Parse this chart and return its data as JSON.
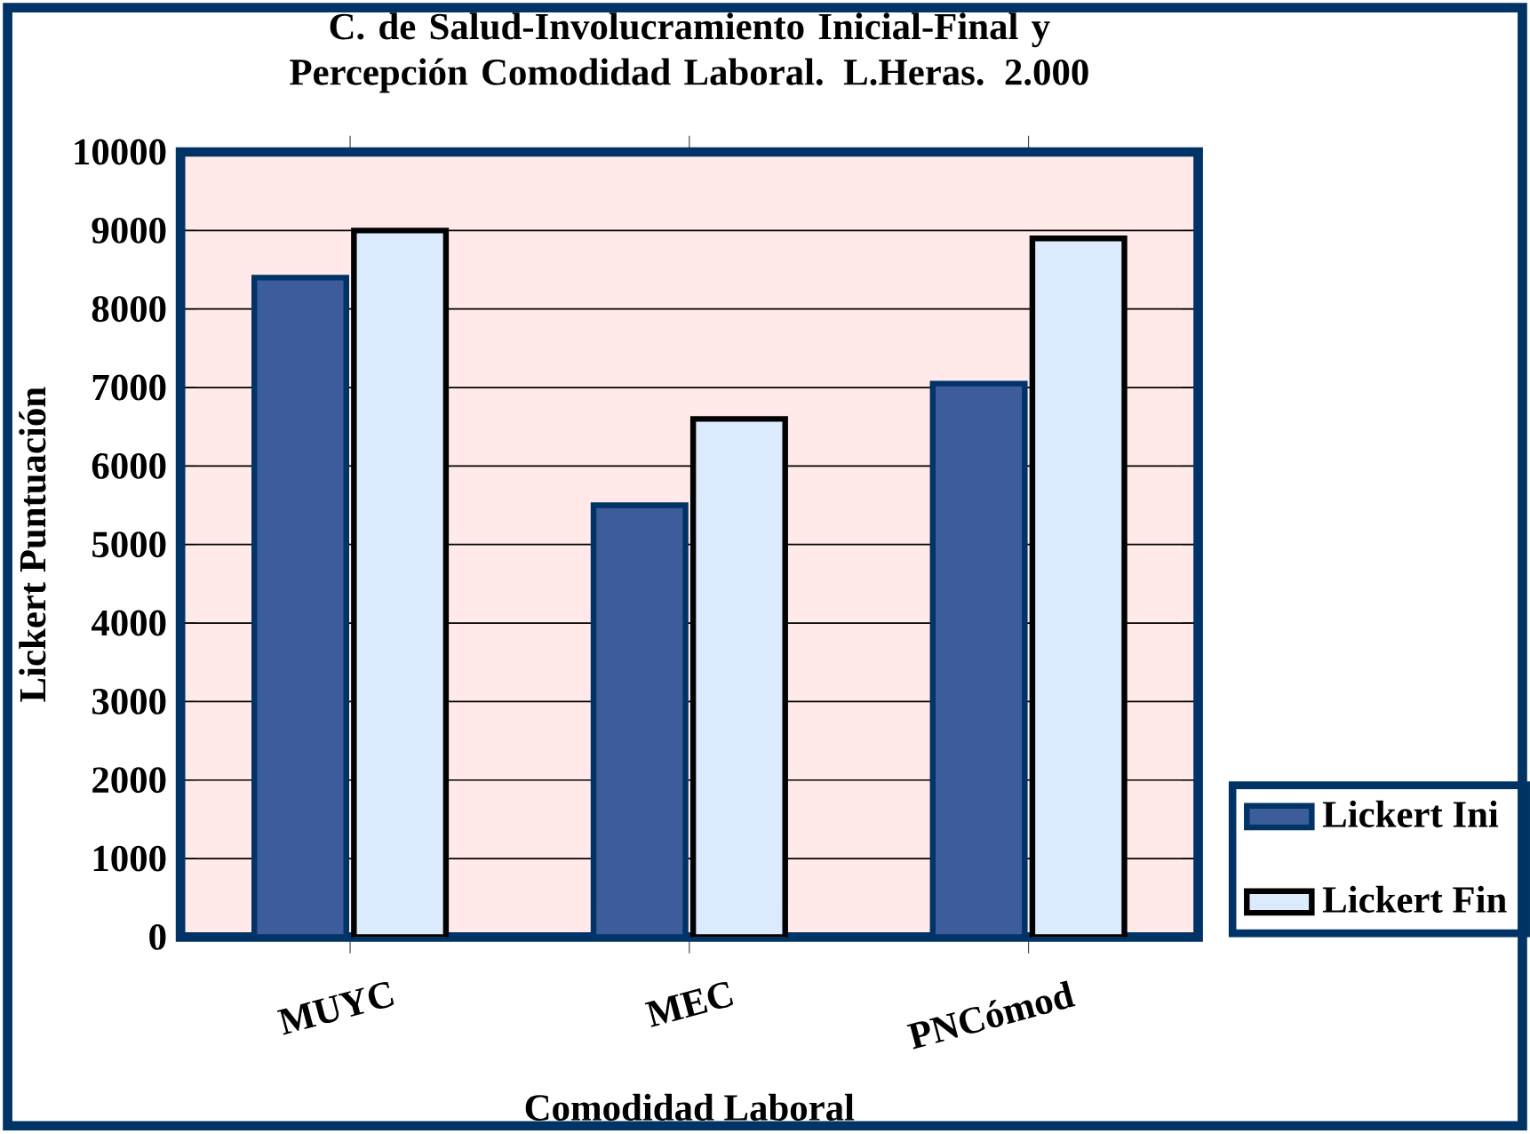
{
  "chart_data": {
    "type": "bar",
    "title": "C. de Salud-Involucramiento Inicial-Final y Percepción Comodidad Laboral. L.Heras. 2.000",
    "xlabel": "Comodidad Laboral",
    "ylabel": "Lickert Puntuación",
    "categories": [
      "MUYC",
      "MEC",
      "PNCómod"
    ],
    "series": [
      {
        "name": "Lickert Ini",
        "color": "#3d5c9c",
        "values": [
          8400,
          5500,
          7050
        ]
      },
      {
        "name": "Lickert Fin",
        "color": "#dbeafc",
        "values": [
          9000,
          6600,
          8900
        ]
      }
    ],
    "ylim": [
      0,
      10000
    ],
    "yticks": [
      0,
      1000,
      2000,
      3000,
      4000,
      5000,
      6000,
      7000,
      8000,
      9000,
      10000
    ],
    "grid": "y",
    "legend": "right"
  }
}
